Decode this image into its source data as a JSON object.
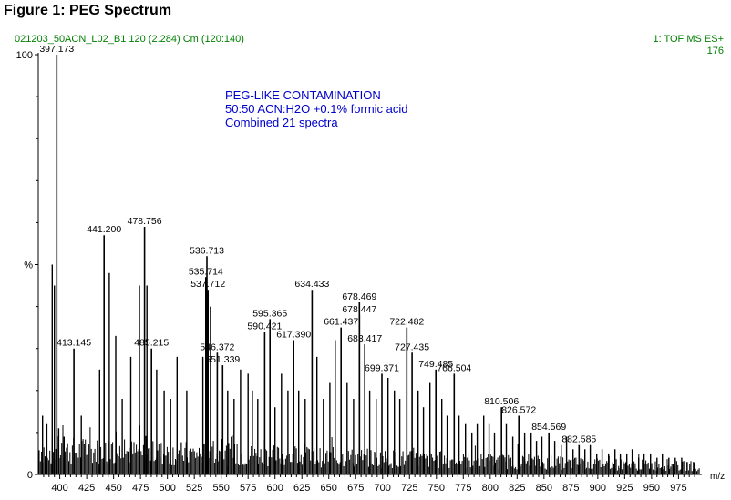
{
  "figure_title": "Figure 1:  PEG Spectrum",
  "run_info": "021203_50ACN_L02_B1 120 (2.284) Cm (120:140)",
  "scan_mode": "1: TOF MS ES+",
  "scan_intensity": "176",
  "annotation_lines": [
    "PEG-LIKE CONTAMINATION",
    "50:50 ACN:H2O +0.1% formic acid",
    "Combined 21 spectra"
  ],
  "colors": {
    "annotation": "#0000cc",
    "header_info": "#008000",
    "spectrum": "#000000"
  },
  "chart_data": {
    "type": "bar",
    "title": "Figure 1:  PEG Spectrum",
    "xlabel": "m/z",
    "ylabel": "%",
    "xlim": [
      380,
      995
    ],
    "ylim": [
      0,
      100
    ],
    "x_ticks": [
      400,
      425,
      450,
      475,
      500,
      525,
      550,
      575,
      600,
      625,
      650,
      675,
      700,
      725,
      750,
      775,
      800,
      825,
      850,
      875,
      900,
      925,
      950,
      975
    ],
    "y_tick_labels": [
      {
        "value": 100,
        "label": "100"
      },
      {
        "value": 50,
        "label": "%"
      },
      {
        "value": 0,
        "label": "0"
      }
    ],
    "labeled_peaks": [
      {
        "mz": 397.173,
        "label": "397.173",
        "intensity": 100
      },
      {
        "mz": 413.145,
        "label": "413.145",
        "intensity": 30
      },
      {
        "mz": 441.2,
        "label": "441.200",
        "intensity": 57
      },
      {
        "mz": 478.756,
        "label": "478.756",
        "intensity": 59
      },
      {
        "mz": 485.215,
        "label": "485.215",
        "intensity": 30
      },
      {
        "mz": 535.714,
        "label": "535.714",
        "intensity": 47
      },
      {
        "mz": 536.713,
        "label": "536.713",
        "intensity": 52
      },
      {
        "mz": 537.712,
        "label": "537.712",
        "intensity": 44
      },
      {
        "mz": 546.372,
        "label": "546.372",
        "intensity": 29
      },
      {
        "mz": 551.339,
        "label": "551.339",
        "intensity": 26
      },
      {
        "mz": 590.421,
        "label": "590.421",
        "intensity": 34
      },
      {
        "mz": 595.365,
        "label": "595.365",
        "intensity": 37
      },
      {
        "mz": 617.39,
        "label": "617.390",
        "intensity": 32
      },
      {
        "mz": 634.433,
        "label": "634.433",
        "intensity": 44
      },
      {
        "mz": 661.437,
        "label": "661.437",
        "intensity": 35
      },
      {
        "mz": 678.447,
        "label": "678.447",
        "intensity": 38
      },
      {
        "mz": 678.469,
        "label": "678.469",
        "intensity": 41
      },
      {
        "mz": 683.417,
        "label": "683.417",
        "intensity": 31
      },
      {
        "mz": 699.371,
        "label": "699.371",
        "intensity": 24
      },
      {
        "mz": 722.482,
        "label": "722.482",
        "intensity": 35
      },
      {
        "mz": 727.435,
        "label": "727.435",
        "intensity": 29
      },
      {
        "mz": 749.485,
        "label": "749.485",
        "intensity": 25
      },
      {
        "mz": 766.504,
        "label": "766.504",
        "intensity": 24
      },
      {
        "mz": 810.506,
        "label": "810.506",
        "intensity": 16
      },
      {
        "mz": 826.572,
        "label": "826.572",
        "intensity": 14
      },
      {
        "mz": 854.569,
        "label": "854.569",
        "intensity": 10
      },
      {
        "mz": 882.585,
        "label": "882.585",
        "intensity": 7
      }
    ],
    "other_peaks": [
      {
        "mz": 384,
        "intensity": 14
      },
      {
        "mz": 388,
        "intensity": 12
      },
      {
        "mz": 393,
        "intensity": 50
      },
      {
        "mz": 395,
        "intensity": 45
      },
      {
        "mz": 399,
        "intensity": 11
      },
      {
        "mz": 404,
        "intensity": 9
      },
      {
        "mz": 420,
        "intensity": 14
      },
      {
        "mz": 437,
        "intensity": 25
      },
      {
        "mz": 446,
        "intensity": 48
      },
      {
        "mz": 452,
        "intensity": 33
      },
      {
        "mz": 458,
        "intensity": 18
      },
      {
        "mz": 466,
        "intensity": 28
      },
      {
        "mz": 474,
        "intensity": 45
      },
      {
        "mz": 481,
        "intensity": 45
      },
      {
        "mz": 490,
        "intensity": 25
      },
      {
        "mz": 497,
        "intensity": 20
      },
      {
        "mz": 503,
        "intensity": 18
      },
      {
        "mz": 509,
        "intensity": 28
      },
      {
        "mz": 518,
        "intensity": 20
      },
      {
        "mz": 533,
        "intensity": 28
      },
      {
        "mz": 540,
        "intensity": 40
      },
      {
        "mz": 556,
        "intensity": 20
      },
      {
        "mz": 562,
        "intensity": 18
      },
      {
        "mz": 568,
        "intensity": 25
      },
      {
        "mz": 575,
        "intensity": 24
      },
      {
        "mz": 579,
        "intensity": 20
      },
      {
        "mz": 584,
        "intensity": 18
      },
      {
        "mz": 600,
        "intensity": 16
      },
      {
        "mz": 606,
        "intensity": 24
      },
      {
        "mz": 612,
        "intensity": 20
      },
      {
        "mz": 622,
        "intensity": 20
      },
      {
        "mz": 628,
        "intensity": 18
      },
      {
        "mz": 639,
        "intensity": 28
      },
      {
        "mz": 645,
        "intensity": 18
      },
      {
        "mz": 651,
        "intensity": 22
      },
      {
        "mz": 656,
        "intensity": 32
      },
      {
        "mz": 667,
        "intensity": 22
      },
      {
        "mz": 673,
        "intensity": 18
      },
      {
        "mz": 688,
        "intensity": 20
      },
      {
        "mz": 694,
        "intensity": 18
      },
      {
        "mz": 705,
        "intensity": 23
      },
      {
        "mz": 711,
        "intensity": 20
      },
      {
        "mz": 716,
        "intensity": 18
      },
      {
        "mz": 733,
        "intensity": 20
      },
      {
        "mz": 738,
        "intensity": 16
      },
      {
        "mz": 744,
        "intensity": 22
      },
      {
        "mz": 755,
        "intensity": 18
      },
      {
        "mz": 760,
        "intensity": 14
      },
      {
        "mz": 771,
        "intensity": 14
      },
      {
        "mz": 777,
        "intensity": 12
      },
      {
        "mz": 783,
        "intensity": 10
      },
      {
        "mz": 788,
        "intensity": 12
      },
      {
        "mz": 794,
        "intensity": 14
      },
      {
        "mz": 799,
        "intensity": 12
      },
      {
        "mz": 804,
        "intensity": 10
      },
      {
        "mz": 815,
        "intensity": 12
      },
      {
        "mz": 821,
        "intensity": 9
      },
      {
        "mz": 832,
        "intensity": 10
      },
      {
        "mz": 838,
        "intensity": 10
      },
      {
        "mz": 843,
        "intensity": 8
      },
      {
        "mz": 848,
        "intensity": 9
      },
      {
        "mz": 860,
        "intensity": 8
      },
      {
        "mz": 866,
        "intensity": 7
      },
      {
        "mz": 871,
        "intensity": 9
      },
      {
        "mz": 877,
        "intensity": 6
      },
      {
        "mz": 888,
        "intensity": 6
      },
      {
        "mz": 893,
        "intensity": 7
      },
      {
        "mz": 899,
        "intensity": 5
      },
      {
        "mz": 904,
        "intensity": 6
      },
      {
        "mz": 910,
        "intensity": 5
      },
      {
        "mz": 916,
        "intensity": 6
      },
      {
        "mz": 921,
        "intensity": 5
      },
      {
        "mz": 927,
        "intensity": 5
      },
      {
        "mz": 932,
        "intensity": 6
      },
      {
        "mz": 938,
        "intensity": 4
      },
      {
        "mz": 943,
        "intensity": 5
      },
      {
        "mz": 949,
        "intensity": 5
      },
      {
        "mz": 955,
        "intensity": 4
      },
      {
        "mz": 960,
        "intensity": 5
      },
      {
        "mz": 966,
        "intensity": 4
      },
      {
        "mz": 972,
        "intensity": 4
      },
      {
        "mz": 978,
        "intensity": 4
      },
      {
        "mz": 983,
        "intensity": 3
      },
      {
        "mz": 989,
        "intensity": 3
      }
    ],
    "baseline_noise_level": 6,
    "grid": false
  }
}
